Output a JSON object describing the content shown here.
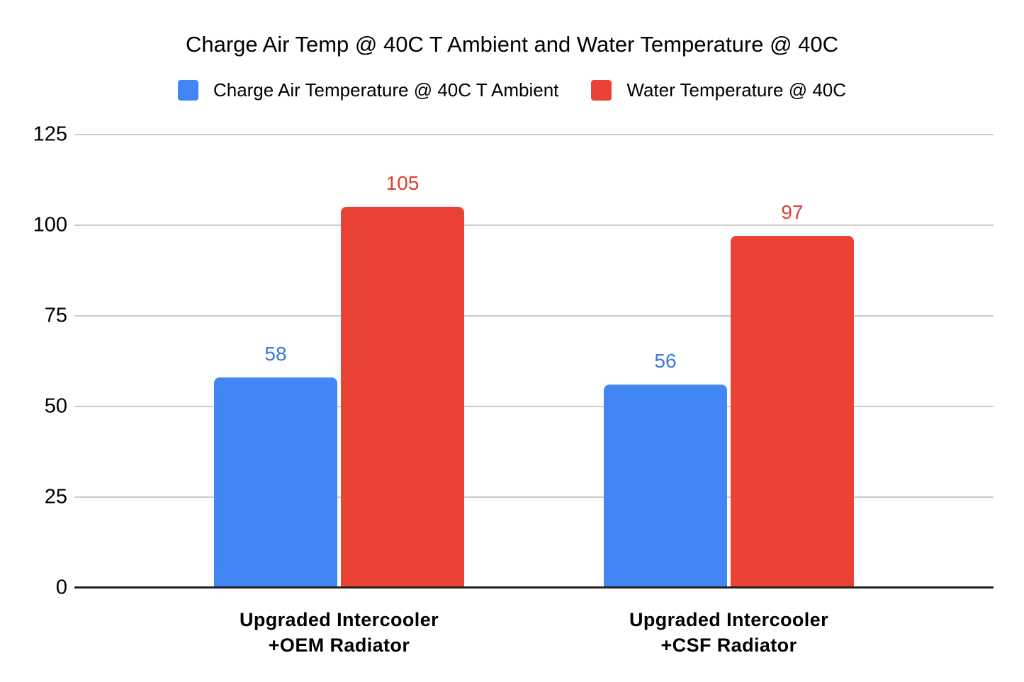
{
  "legend": [
    {
      "label": "Charge Air Temperature @ 40C T Ambient",
      "color": "#4285F4"
    },
    {
      "label": "Water Temperature @ 40C",
      "color": "#EA4335"
    }
  ],
  "chart_data": {
    "type": "bar",
    "title": "Charge Air Temp @ 40C T Ambient and Water Temperature @ 40C",
    "categories": [
      "Upgraded Intercooler\n+OEM Radiator",
      "Upgraded Intercooler\n+CSF Radiator"
    ],
    "series": [
      {
        "name": "Charge Air Temperature @ 40C T Ambient",
        "color": "#4285F4",
        "label_color": "#3c78d8",
        "values": [
          58,
          56
        ]
      },
      {
        "name": "Water Temperature @ 40C",
        "color": "#EA4335",
        "label_color": "#dc4032",
        "values": [
          105,
          97
        ]
      }
    ],
    "xlabel": "",
    "ylabel": "",
    "ylim": [
      0,
      125
    ],
    "yticks": [
      0,
      25,
      50,
      75,
      100,
      125
    ],
    "grid": true,
    "legend_position": "top",
    "data_labels": true
  },
  "colors": {
    "gridline": "#cbcbcb",
    "axis": "#212121",
    "text": "#000000",
    "background": "#ffffff"
  }
}
